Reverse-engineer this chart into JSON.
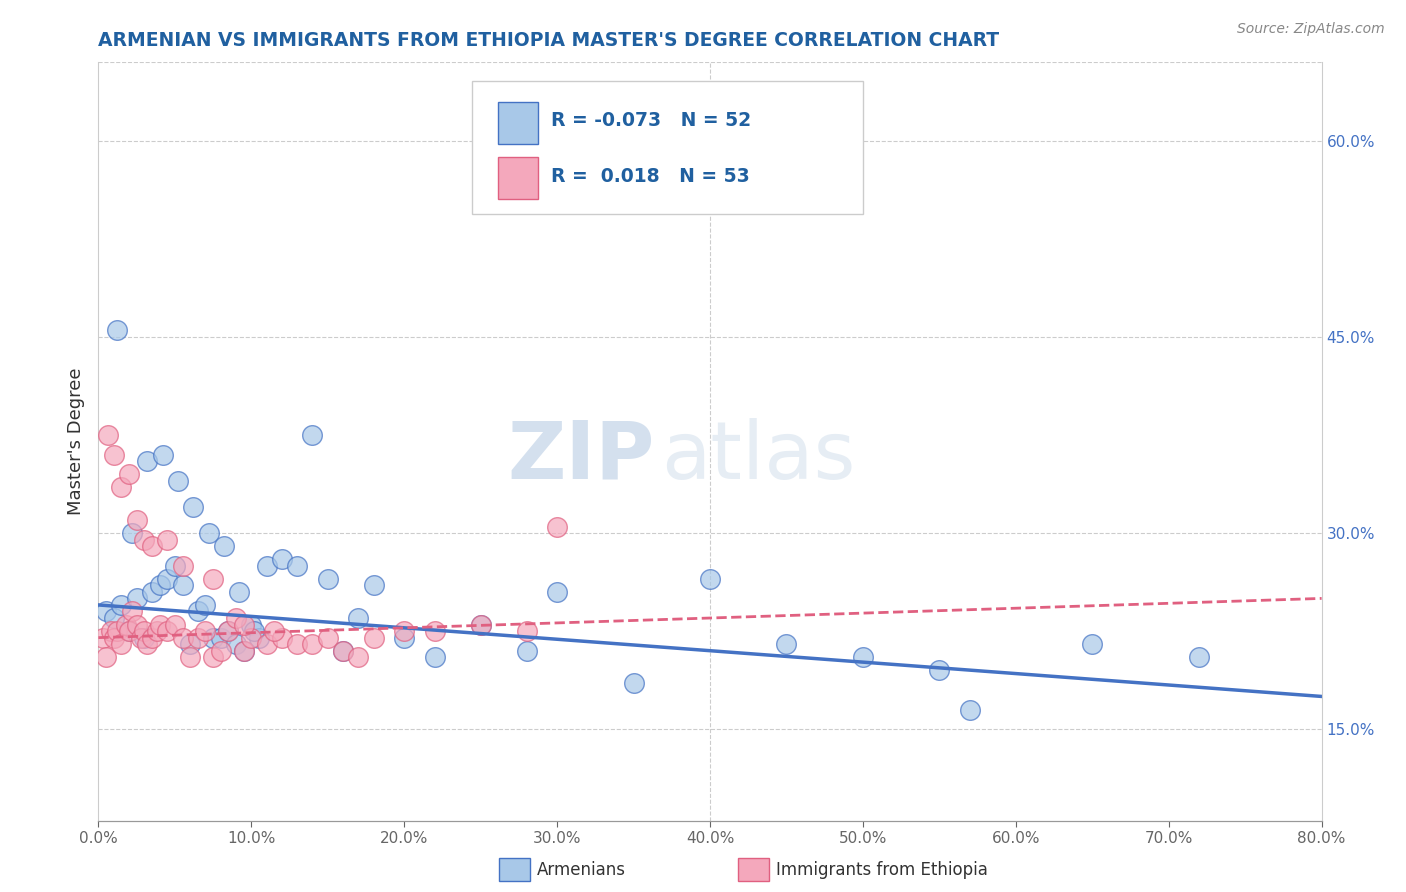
{
  "title": "ARMENIAN VS IMMIGRANTS FROM ETHIOPIA MASTER'S DEGREE CORRELATION CHART",
  "source": "Source: ZipAtlas.com",
  "ylabel": "Master's Degree",
  "right_yticks": [
    15.0,
    30.0,
    45.0,
    60.0
  ],
  "right_ytick_labels": [
    "15.0%",
    "30.0%",
    "45.0%",
    "60.0%"
  ],
  "xtick_labels": [
    "0.0%",
    "10.0%",
    "20.0%",
    "30.0%",
    "40.0%",
    "50.0%",
    "60.0%",
    "70.0%",
    "80.0%"
  ],
  "legend_r1": "R = -0.073",
  "legend_n1": "N = 52",
  "legend_r2": "R =  0.018",
  "legend_n2": "N = 53",
  "legend_label1": "Armenians",
  "legend_label2": "Immigrants from Ethiopia",
  "color_armenian": "#a8c8e8",
  "color_ethiopia": "#f4a8bc",
  "color_trendline_armenian": "#4472c4",
  "color_trendline_ethiopia": "#e06080",
  "watermark_zip": "ZIP",
  "watermark_atlas": "atlas",
  "title_color": "#2060a0",
  "legend_text_color": "#2060a0",
  "background_color": "#ffffff",
  "armenian_x": [
    0.5,
    1.0,
    1.5,
    2.0,
    2.5,
    3.0,
    3.5,
    4.0,
    4.5,
    5.0,
    5.5,
    6.0,
    6.5,
    7.0,
    7.5,
    8.0,
    8.5,
    9.0,
    9.5,
    10.0,
    10.5,
    11.0,
    12.0,
    13.0,
    14.0,
    15.0,
    16.0,
    17.0,
    18.0,
    20.0,
    22.0,
    25.0,
    28.0,
    30.0,
    35.0,
    40.0,
    45.0,
    50.0,
    55.0,
    57.0,
    65.0,
    72.0,
    1.2,
    2.2,
    3.2,
    4.2,
    5.2,
    6.2,
    7.2,
    8.2,
    9.2,
    10.2
  ],
  "armenian_y": [
    24.0,
    23.5,
    24.5,
    22.5,
    25.0,
    22.0,
    25.5,
    26.0,
    26.5,
    27.5,
    26.0,
    21.5,
    24.0,
    24.5,
    22.0,
    22.0,
    22.5,
    21.5,
    21.0,
    23.0,
    22.0,
    27.5,
    28.0,
    27.5,
    37.5,
    26.5,
    21.0,
    23.5,
    26.0,
    22.0,
    20.5,
    23.0,
    21.0,
    25.5,
    18.5,
    26.5,
    21.5,
    20.5,
    19.5,
    16.5,
    21.5,
    20.5,
    45.5,
    30.0,
    35.5,
    36.0,
    34.0,
    32.0,
    30.0,
    29.0,
    25.5,
    22.5
  ],
  "ethiopia_x": [
    0.3,
    0.5,
    0.8,
    1.0,
    1.2,
    1.5,
    1.8,
    2.0,
    2.2,
    2.5,
    2.8,
    3.0,
    3.2,
    3.5,
    3.8,
    4.0,
    4.5,
    5.0,
    5.5,
    6.0,
    6.5,
    7.0,
    7.5,
    8.0,
    8.5,
    9.0,
    9.5,
    10.0,
    11.0,
    12.0,
    13.0,
    14.0,
    15.0,
    16.0,
    17.0,
    18.0,
    20.0,
    22.0,
    25.0,
    28.0,
    30.0,
    0.6,
    1.0,
    1.5,
    2.0,
    2.5,
    3.0,
    3.5,
    4.5,
    5.5,
    7.5,
    9.5,
    11.5
  ],
  "ethiopia_y": [
    22.0,
    20.5,
    22.5,
    22.0,
    22.5,
    21.5,
    23.0,
    22.5,
    24.0,
    23.0,
    22.0,
    22.5,
    21.5,
    22.0,
    22.5,
    23.0,
    22.5,
    23.0,
    22.0,
    20.5,
    22.0,
    22.5,
    20.5,
    21.0,
    22.5,
    23.5,
    21.0,
    22.0,
    21.5,
    22.0,
    21.5,
    21.5,
    22.0,
    21.0,
    20.5,
    22.0,
    22.5,
    22.5,
    23.0,
    22.5,
    30.5,
    37.5,
    36.0,
    33.5,
    34.5,
    31.0,
    29.5,
    29.0,
    29.5,
    27.5,
    26.5,
    23.0,
    22.5
  ],
  "xmin": 0.0,
  "xmax": 80.0,
  "ymin": 8.0,
  "ymax": 66.0,
  "trendline_arm_start": 24.5,
  "trendline_arm_end": 17.5,
  "trendline_eth_start": 22.0,
  "trendline_eth_end": 25.0
}
